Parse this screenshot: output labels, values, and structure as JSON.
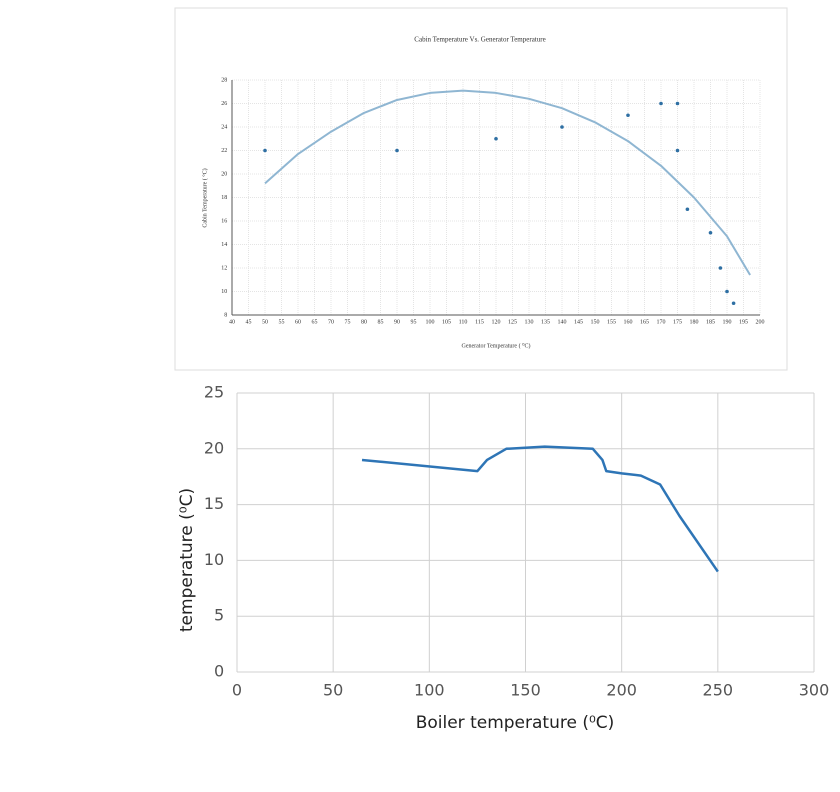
{
  "chart_data": [
    {
      "type": "scatter",
      "title": "Cabin Temperature Vs. Generator Temperature",
      "x_label": "Generator Temperature ( ⁰C)",
      "y_label": "Cabin Temperature ( °C)",
      "xlim": [
        40,
        200
      ],
      "xticks": [
        40,
        45,
        50,
        55,
        60,
        65,
        70,
        75,
        80,
        85,
        90,
        95,
        100,
        105,
        110,
        115,
        120,
        125,
        130,
        135,
        140,
        145,
        150,
        155,
        160,
        165,
        170,
        175,
        180,
        185,
        190,
        195,
        200
      ],
      "ylim": [
        8,
        28
      ],
      "yticks": [
        8,
        10,
        12,
        14,
        16,
        18,
        20,
        22,
        24,
        26,
        28
      ],
      "grid": true,
      "series": [
        {
          "color": "#2e6fa3",
          "x": [
            50,
            90,
            120,
            140,
            160,
            170,
            175,
            175,
            178,
            185,
            188,
            190,
            192
          ],
          "values": [
            22,
            22,
            23,
            24,
            25,
            26,
            26,
            22,
            17,
            15,
            12,
            10,
            9
          ]
        },
        {
          "color": "#8fb6d2",
          "style": "line",
          "x": [
            50,
            60,
            70,
            80,
            90,
            100,
            110,
            120,
            130,
            140,
            150,
            160,
            170,
            180,
            190,
            197
          ],
          "values": [
            19.2,
            21.7,
            23.6,
            25.2,
            26.3,
            26.9,
            27.1,
            26.9,
            26.4,
            25.6,
            24.4,
            22.8,
            20.7,
            18,
            14.7,
            11.4
          ]
        }
      ]
    },
    {
      "type": "line",
      "x_label": "Boiler temperature (⁰C)",
      "y_label": "temperature (⁰C)",
      "xlim": [
        0,
        300
      ],
      "xticks": [
        0,
        50,
        100,
        150,
        200,
        250,
        300
      ],
      "ylim": [
        0,
        25
      ],
      "yticks": [
        0,
        5,
        10,
        15,
        20,
        25
      ],
      "grid": true,
      "series": [
        {
          "color": "#2e75b6",
          "x": [
            65,
            125,
            130,
            140,
            160,
            185,
            190,
            192,
            200,
            210,
            220,
            230,
            250
          ],
          "values": [
            19,
            18,
            19,
            20,
            20.2,
            20,
            19,
            18,
            17.8,
            17.6,
            16.8,
            14,
            9
          ]
        }
      ]
    }
  ]
}
